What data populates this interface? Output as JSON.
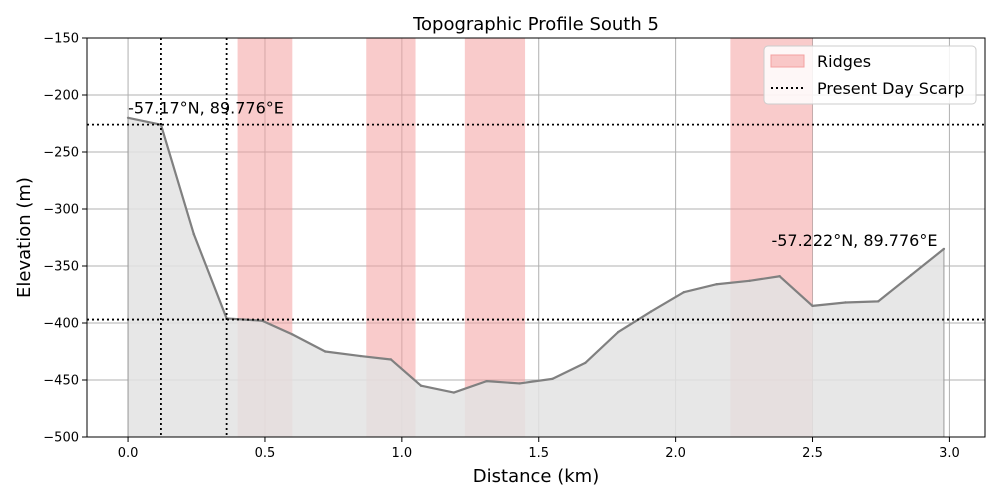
{
  "chart_data": {
    "type": "area",
    "title": "Topographic Profile South 5",
    "xlabel": "Distance (km)",
    "ylabel": "Elevation (m)",
    "xlim": [
      -0.15,
      3.13
    ],
    "ylim": [
      -500,
      -150
    ],
    "xticks": [
      0.0,
      0.5,
      1.0,
      1.5,
      2.0,
      2.5,
      3.0
    ],
    "xtick_labels": [
      "0.0",
      "0.5",
      "1.0",
      "1.5",
      "2.0",
      "2.5",
      "3.0"
    ],
    "yticks": [
      -500,
      -450,
      -400,
      -350,
      -300,
      -250,
      -200,
      -150
    ],
    "ytick_labels": [
      "−500",
      "−450",
      "−400",
      "−350",
      "−300",
      "−250",
      "−200",
      "−150"
    ],
    "grid": true,
    "legend_position": "top-right",
    "colors": {
      "profile_line": "#808080",
      "profile_fill": "#e3e3e3",
      "ridge_fill": "#f4a0a0",
      "scarp_line": "#000000"
    },
    "series": [
      {
        "x": [
          0.0,
          0.12,
          0.24,
          0.36,
          0.49,
          0.6,
          0.72,
          0.85,
          0.96,
          1.07,
          1.19,
          1.31,
          1.43,
          1.55,
          1.67,
          1.79,
          1.91,
          2.03,
          2.15,
          2.27,
          2.38,
          2.5,
          2.62,
          2.74,
          2.86,
          2.98
        ],
        "y": [
          -220,
          -226,
          -322,
          -396,
          -398,
          -410,
          -425,
          -429,
          -432,
          -455,
          -461,
          -451,
          -453,
          -449,
          -435,
          -408,
          -390,
          -373,
          -366,
          -363,
          -359,
          -385,
          -382,
          -381,
          -358,
          -335
        ]
      }
    ],
    "ridges": [
      {
        "x_start": 0.4,
        "x_end": 0.6
      },
      {
        "x_start": 0.87,
        "x_end": 1.05
      },
      {
        "x_start": 1.23,
        "x_end": 1.45
      },
      {
        "x_start": 2.2,
        "x_end": 2.5
      }
    ],
    "scarp_vertical": [
      0.12,
      0.36
    ],
    "scarp_horizontal": [
      -226,
      -397
    ],
    "legend": [
      {
        "label": "Ridges",
        "kind": "patch"
      },
      {
        "label": "Present Day Scarp",
        "kind": "dotted-line"
      }
    ],
    "annotations": [
      {
        "text": "-57.17°N, 89.776°E",
        "x": 0.0,
        "y": -212
      },
      {
        "text": "-57.222°N, 89.776°E",
        "x": 2.35,
        "y": -328
      }
    ]
  }
}
